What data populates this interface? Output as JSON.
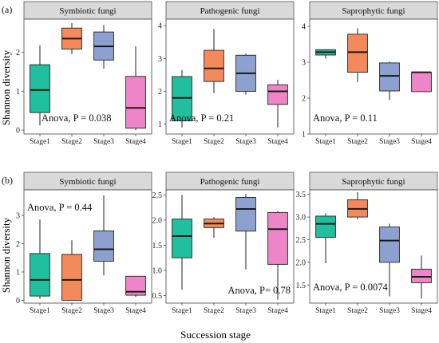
{
  "figure": {
    "y_axis_title": "Shannon diversity",
    "x_axis_title": "Succession stage"
  },
  "colors": {
    "Stage1": "#1fbf9f",
    "Stage2": "#f48a5a",
    "Stage3": "#8ea0cf",
    "Stage4": "#ee85c8",
    "strip_bg": "#d9d9d9",
    "median_line": "#1a1a1a"
  },
  "chart_data": [
    {
      "type": "boxplot",
      "row_label": "(a)",
      "title": "Symbiotic fungi",
      "categories": [
        "Stage1",
        "Stage2",
        "Stage3",
        "Stage4"
      ],
      "ylim": [
        -0.1,
        2.85
      ],
      "yticks": [
        0,
        1,
        2
      ],
      "annotation": "Anova, P = 0.038",
      "annotation_pos": "lower-left",
      "boxes": [
        {
          "stage": "Stage1",
          "min": 0.12,
          "q1": 0.45,
          "median": 1.03,
          "q3": 1.68,
          "max": 2.18
        },
        {
          "stage": "Stage2",
          "min": 1.95,
          "q1": 2.08,
          "median": 2.35,
          "q3": 2.62,
          "max": 2.75
        },
        {
          "stage": "Stage3",
          "min": 1.58,
          "q1": 1.8,
          "median": 2.15,
          "q3": 2.52,
          "max": 2.7
        },
        {
          "stage": "Stage4",
          "min": 0.0,
          "q1": 0.05,
          "median": 0.57,
          "q3": 1.38,
          "max": 2.15
        }
      ]
    },
    {
      "type": "boxplot",
      "title": "Pathogenic fungi",
      "categories": [
        "Stage1",
        "Stage2",
        "Stage3",
        "Stage4"
      ],
      "ylim": [
        0.7,
        4.2
      ],
      "yticks": [
        1,
        2,
        3,
        4
      ],
      "annotation": "Anova, P = 0.21",
      "annotation_pos": "lower-left",
      "boxes": [
        {
          "stage": "Stage1",
          "min": 0.9,
          "q1": 1.1,
          "median": 1.8,
          "q3": 2.45,
          "max": 2.65
        },
        {
          "stage": "Stage2",
          "min": 1.95,
          "q1": 2.3,
          "median": 2.7,
          "q3": 3.25,
          "max": 3.9
        },
        {
          "stage": "Stage3",
          "min": 1.9,
          "q1": 2.0,
          "median": 2.55,
          "q3": 3.1,
          "max": 3.15
        },
        {
          "stage": "Stage4",
          "min": 0.9,
          "q1": 1.6,
          "median": 2.0,
          "q3": 2.2,
          "max": 2.35
        }
      ]
    },
    {
      "type": "boxplot",
      "title": "Saprophytic fungi",
      "categories": [
        "Stage1",
        "Stage2",
        "Stage3",
        "Stage4"
      ],
      "ylim": [
        1.0,
        4.2
      ],
      "yticks": [
        1,
        2,
        3,
        4
      ],
      "annotation": "Anova, P = 0.11",
      "annotation_pos": "lower-left",
      "boxes": [
        {
          "stage": "Stage1",
          "min": 3.1,
          "q1": 3.2,
          "median": 3.28,
          "q3": 3.35,
          "max": 3.35
        },
        {
          "stage": "Stage2",
          "min": 2.45,
          "q1": 2.72,
          "median": 3.28,
          "q3": 3.78,
          "max": 3.95
        },
        {
          "stage": "Stage3",
          "min": 1.95,
          "q1": 2.2,
          "median": 2.62,
          "q3": 2.98,
          "max": 3.02
        },
        {
          "stage": "Stage4",
          "min": 2.18,
          "q1": 2.18,
          "median": 2.72,
          "q3": 2.72,
          "max": 2.72
        }
      ]
    },
    {
      "type": "boxplot",
      "row_label": "(b)",
      "title": "Symbiotic fungi",
      "categories": [
        "Stage1",
        "Stage2",
        "Stage3",
        "Stage4"
      ],
      "ylim": [
        -0.1,
        3.9
      ],
      "yticks": [
        0,
        1,
        2,
        3
      ],
      "annotation": "Anova, P = 0.44",
      "annotation_pos": "upper-left",
      "boxes": [
        {
          "stage": "Stage1",
          "min": 0.05,
          "q1": 0.15,
          "median": 0.72,
          "q3": 1.65,
          "max": 2.85
        },
        {
          "stage": "Stage2",
          "min": 0.0,
          "q1": 0.0,
          "median": 0.72,
          "q3": 1.62,
          "max": 2.12
        },
        {
          "stage": "Stage3",
          "min": 0.88,
          "q1": 1.38,
          "median": 1.8,
          "q3": 2.45,
          "max": 3.7
        },
        {
          "stage": "Stage4",
          "min": 0.12,
          "q1": 0.18,
          "median": 0.3,
          "q3": 0.85,
          "max": 0.85
        }
      ]
    },
    {
      "type": "boxplot",
      "title": "Pathogenic fungi",
      "categories": [
        "Stage1",
        "Stage2",
        "Stage3",
        "Stage4"
      ],
      "ylim": [
        0.35,
        2.6
      ],
      "yticks": [
        0.5,
        1.0,
        1.5,
        2.0,
        2.5
      ],
      "annotation": "Anova, P= 0.78",
      "annotation_pos": "lower-right",
      "boxes": [
        {
          "stage": "Stage1",
          "min": 0.62,
          "q1": 1.25,
          "median": 1.68,
          "q3": 2.02,
          "max": 2.5
        },
        {
          "stage": "Stage2",
          "min": 1.65,
          "q1": 1.85,
          "median": 1.93,
          "q3": 2.02,
          "max": 2.06
        },
        {
          "stage": "Stage3",
          "min": 1.02,
          "q1": 1.78,
          "median": 2.22,
          "q3": 2.45,
          "max": 2.52
        },
        {
          "stage": "Stage4",
          "min": 0.42,
          "q1": 1.12,
          "median": 1.82,
          "q3": 2.15,
          "max": 2.18
        }
      ]
    },
    {
      "type": "boxplot",
      "title": "Saprophytic fungi",
      "categories": [
        "Stage1",
        "Stage2",
        "Stage3",
        "Stage4"
      ],
      "ylim": [
        1.1,
        3.6
      ],
      "yticks": [
        1.5,
        2.0,
        2.5,
        3.0,
        3.5
      ],
      "annotation": "Anova, P = 0.0074",
      "annotation_pos": "lower-left",
      "boxes": [
        {
          "stage": "Stage1",
          "min": 1.98,
          "q1": 2.55,
          "median": 2.85,
          "q3": 3.02,
          "max": 3.08
        },
        {
          "stage": "Stage2",
          "min": 2.95,
          "q1": 3.0,
          "median": 3.18,
          "q3": 3.38,
          "max": 3.55
        },
        {
          "stage": "Stage3",
          "min": 1.25,
          "q1": 2.0,
          "median": 2.48,
          "q3": 2.78,
          "max": 2.85
        },
        {
          "stage": "Stage4",
          "min": 1.2,
          "q1": 1.55,
          "median": 1.68,
          "q3": 1.85,
          "max": 2.15
        }
      ]
    }
  ]
}
